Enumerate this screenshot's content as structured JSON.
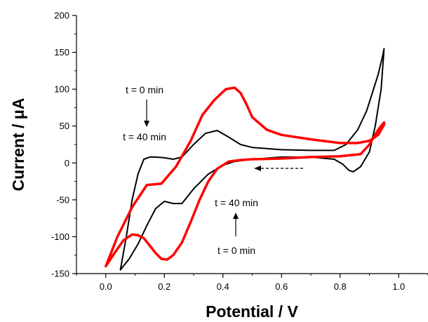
{
  "chart_data": {
    "type": "line",
    "xlabel": "Potential / V",
    "ylabel": "Current / μA",
    "xlim": [
      -0.1,
      1.1
    ],
    "ylim": [
      -150,
      200
    ],
    "xticks": [
      "0.0",
      "0.2",
      "0.4",
      "0.6",
      "0.8",
      "1.0"
    ],
    "yticks": [
      "-150",
      "-100",
      "-50",
      "0",
      "50",
      "100",
      "150",
      "200"
    ],
    "grid": false,
    "series": [
      {
        "color": "#000000",
        "x": [
          0.05,
          0.07,
          0.09,
          0.11,
          0.13,
          0.15,
          0.17,
          0.2,
          0.23,
          0.26,
          0.3,
          0.34,
          0.38,
          0.42,
          0.46,
          0.5,
          0.6,
          0.7,
          0.78,
          0.82,
          0.86,
          0.89,
          0.91,
          0.93,
          0.945,
          0.95,
          0.94,
          0.92,
          0.9,
          0.87,
          0.845,
          0.83,
          0.81,
          0.78,
          0.7,
          0.6,
          0.5,
          0.44,
          0.4,
          0.35,
          0.3,
          0.26,
          0.23,
          0.2,
          0.17,
          0.14,
          0.11,
          0.08,
          0.05
        ],
        "y": [
          -145,
          -100,
          -50,
          -15,
          5,
          8,
          8,
          7,
          5,
          8,
          25,
          40,
          44,
          35,
          25,
          21,
          18,
          17,
          17,
          25,
          45,
          70,
          95,
          120,
          145,
          155,
          100,
          50,
          15,
          -5,
          -12,
          -10,
          -2,
          5,
          8,
          8,
          5,
          2,
          -3,
          -15,
          -35,
          -55,
          -55,
          -52,
          -62,
          -85,
          -110,
          -130,
          -145
        ]
      },
      {
        "color": "#ff0000",
        "x": [
          0.0,
          0.04,
          0.09,
          0.14,
          0.19,
          0.24,
          0.29,
          0.33,
          0.37,
          0.41,
          0.44,
          0.46,
          0.48,
          0.5,
          0.55,
          0.6,
          0.7,
          0.8,
          0.86,
          0.9,
          0.93,
          0.95,
          0.95,
          0.93,
          0.9,
          0.87,
          0.8,
          0.7,
          0.6,
          0.5,
          0.46,
          0.42,
          0.38,
          0.35,
          0.32,
          0.29,
          0.26,
          0.23,
          0.21,
          0.19,
          0.17,
          0.15,
          0.13,
          0.11,
          0.09,
          0.06,
          0.03,
          0.0
        ],
        "y": [
          -140,
          -100,
          -60,
          -30,
          -28,
          -5,
          30,
          65,
          85,
          100,
          102,
          95,
          80,
          62,
          45,
          38,
          32,
          27,
          27,
          30,
          38,
          52,
          55,
          45,
          25,
          12,
          9,
          8,
          6,
          5,
          4,
          2,
          -8,
          -25,
          -50,
          -80,
          -108,
          -125,
          -131,
          -130,
          -122,
          -112,
          -102,
          -98,
          -97,
          -105,
          -122,
          -140
        ]
      }
    ],
    "annotations": {
      "upper_from": "t = 0 min",
      "upper_to": "t = 40 min",
      "lower_to": "t = 40 min",
      "lower_from": "t = 0 min"
    }
  }
}
